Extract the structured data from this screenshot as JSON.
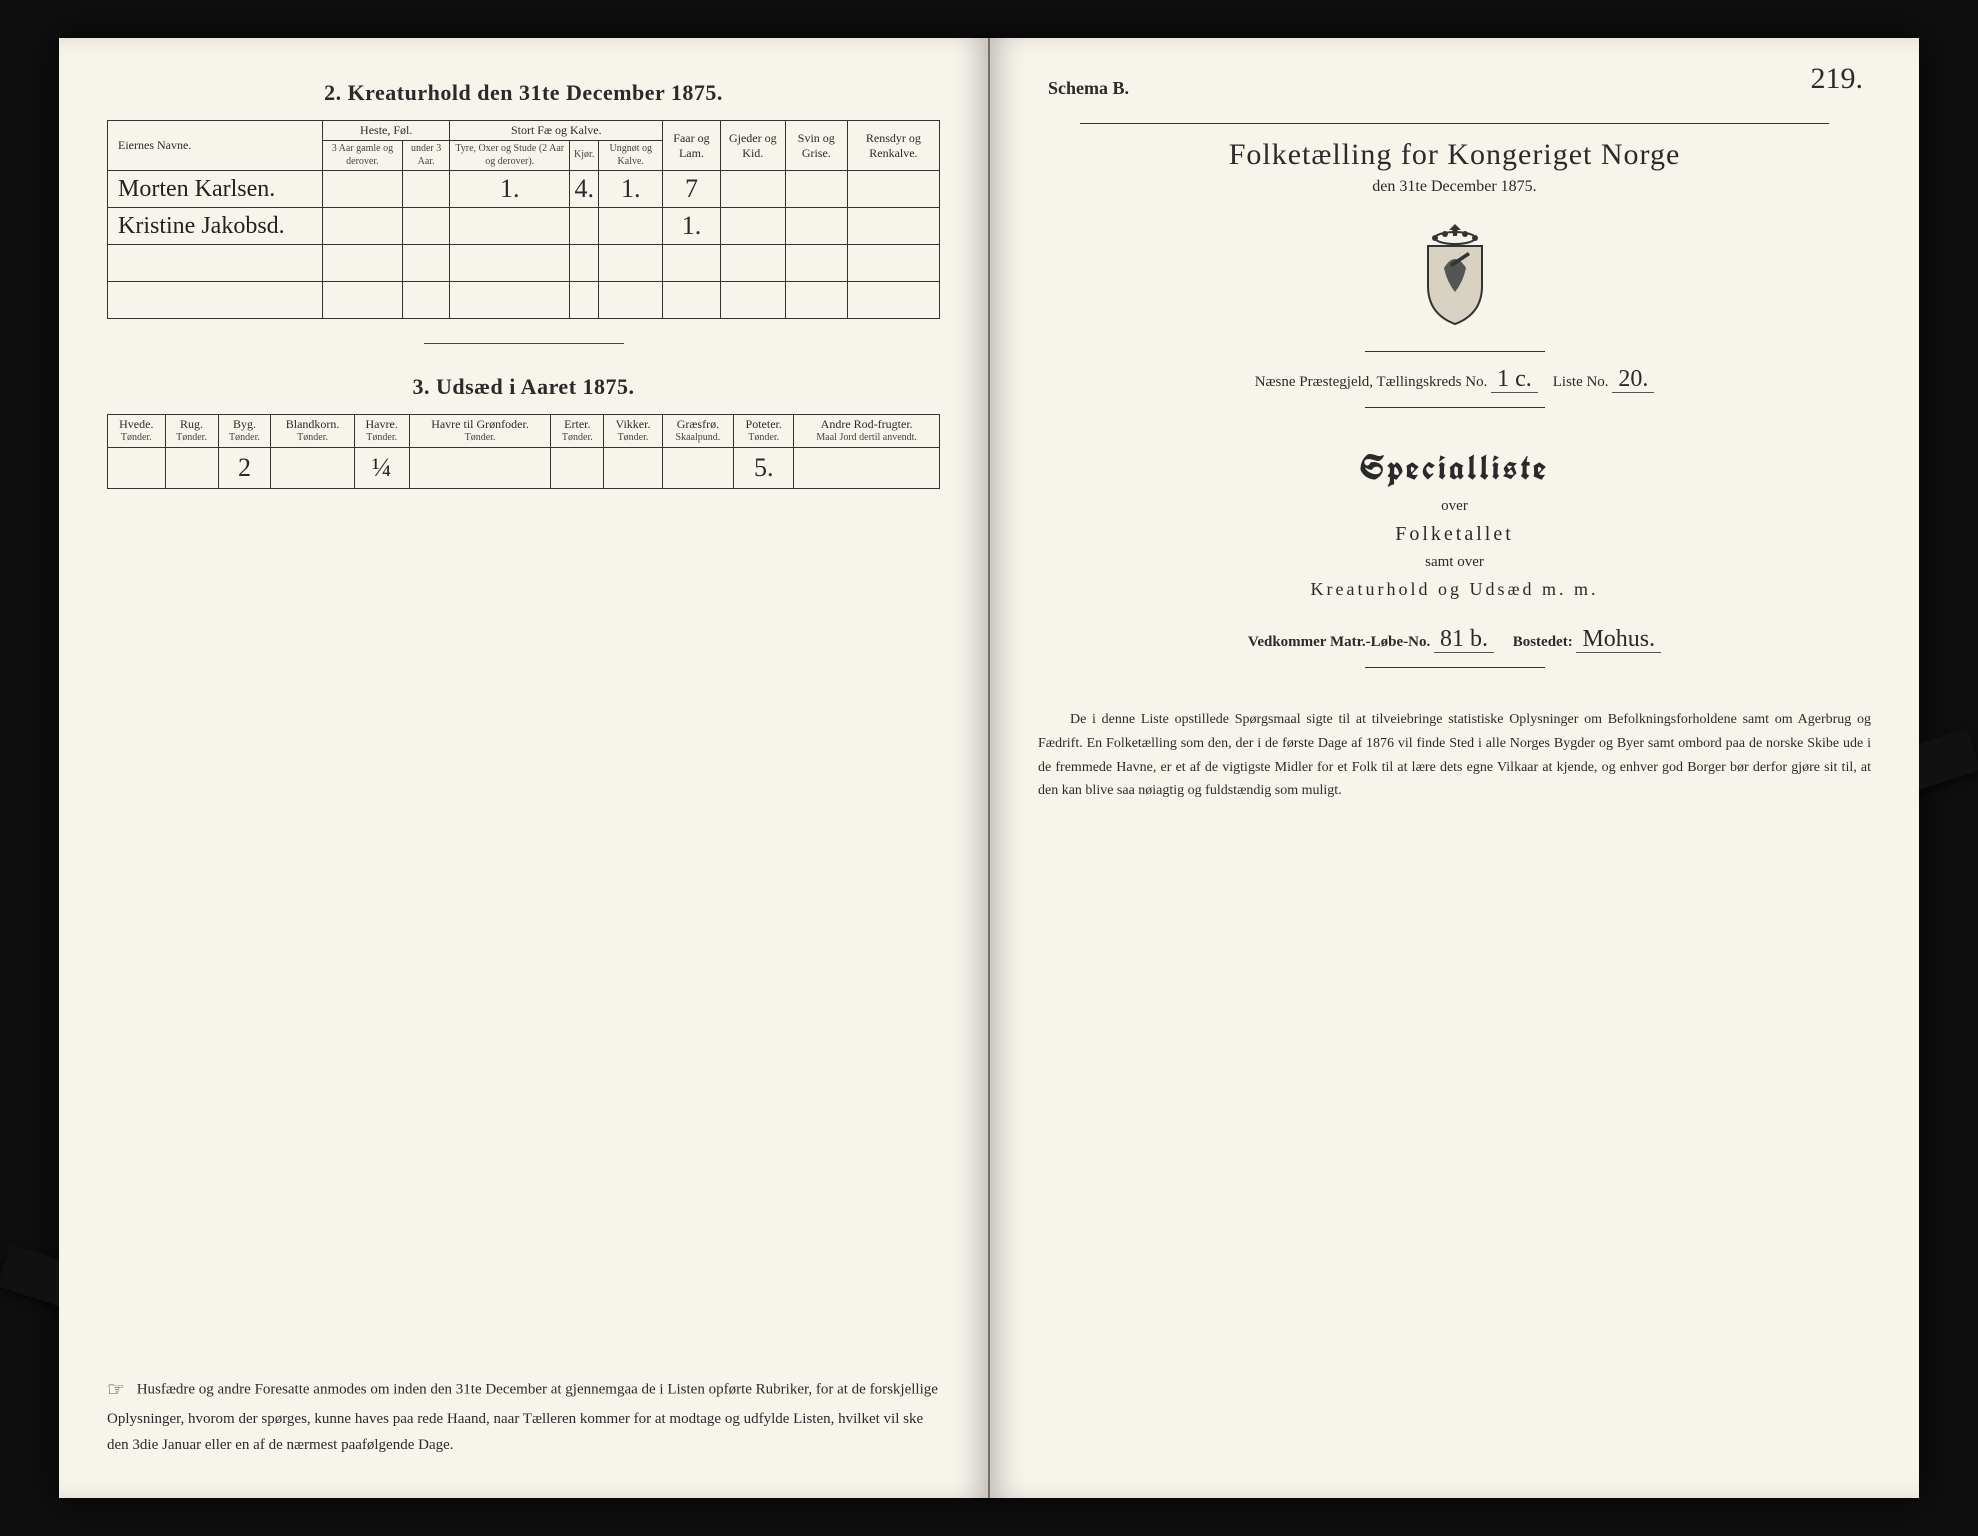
{
  "left": {
    "section2_title": "2.  Kreaturhold den 31te December 1875.",
    "table1": {
      "col_name": "Eiernes Navne.",
      "group_heste": "Heste, Føl.",
      "group_stortfae": "Stort Fæ og Kalve.",
      "col_faar": "Faar og Lam.",
      "col_gjeder": "Gjeder og Kid.",
      "col_svin": "Svin og Grise.",
      "col_rensdyr": "Rensdyr og Renkalve.",
      "heste_a": "3 Aar gamle og derover.",
      "heste_b": "under 3 Aar.",
      "stort_a": "Tyre, Oxer og Stude (2 Aar og derover).",
      "stort_b": "Kjør.",
      "stort_c": "Ungnøt og Kalve.",
      "rows": [
        {
          "name": "Morten Karlsen.",
          "heste_a": "",
          "heste_b": "",
          "stort_a": "1.",
          "stort_b": "4.",
          "stort_c": "1.",
          "faar": "7",
          "gjeder": "",
          "svin": "",
          "ren": ""
        },
        {
          "name": "Kristine Jakobsd.",
          "heste_a": "",
          "heste_b": "",
          "stort_a": "",
          "stort_b": "",
          "stort_c": "",
          "faar": "1.",
          "gjeder": "",
          "svin": "",
          "ren": ""
        },
        {
          "name": "",
          "heste_a": "",
          "heste_b": "",
          "stort_a": "",
          "stort_b": "",
          "stort_c": "",
          "faar": "",
          "gjeder": "",
          "svin": "",
          "ren": ""
        },
        {
          "name": "",
          "heste_a": "",
          "heste_b": "",
          "stort_a": "",
          "stort_b": "",
          "stort_c": "",
          "faar": "",
          "gjeder": "",
          "svin": "",
          "ren": ""
        }
      ]
    },
    "section3_title": "3.  Udsæd i Aaret 1875.",
    "table2": {
      "headers": [
        {
          "t": "Hvede.",
          "s": "Tønder."
        },
        {
          "t": "Rug.",
          "s": "Tønder."
        },
        {
          "t": "Byg.",
          "s": "Tønder."
        },
        {
          "t": "Blandkorn.",
          "s": "Tønder."
        },
        {
          "t": "Havre.",
          "s": "Tønder."
        },
        {
          "t": "Havre til Grønfoder.",
          "s": "Tønder."
        },
        {
          "t": "Erter.",
          "s": "Tønder."
        },
        {
          "t": "Vikker.",
          "s": "Tønder."
        },
        {
          "t": "Græsfrø.",
          "s": "Skaalpund."
        },
        {
          "t": "Poteter.",
          "s": "Tønder."
        },
        {
          "t": "Andre Rod-frugter.",
          "s": "Maal Jord dertil anvendt."
        }
      ],
      "row": [
        "",
        "",
        "2",
        "",
        "¼",
        "",
        "",
        "",
        "",
        "5.",
        ""
      ]
    },
    "notice": "Husfædre og andre Foresatte anmodes om inden den 31te December at gjennemgaa de i Listen opførte Rubriker, for at de forskjellige Oplysninger, hvorom der spørges, kunne haves paa rede Haand, naar Tælleren kommer for at modtage og udfylde Listen, hvilket vil ske den 3die Januar eller en af de nærmest paafølgende Dage."
  },
  "right": {
    "page_num": "219.",
    "schema": "Schema B.",
    "title": "Folketælling for Kongeriget Norge",
    "subtitle": "den 31te December 1875.",
    "line_parish_label_a": "Næsne Præstegjeld, Tællingskreds No.",
    "line_parish_fill_a": "1 c.",
    "line_parish_label_b": "Liste No.",
    "line_parish_fill_b": "20.",
    "special": "Specialliste",
    "over1": "over",
    "folketallet": "Folketallet",
    "samt": "samt over",
    "kreatur": "Kreaturhold og Udsæd m. m.",
    "vedk_label_a": "Vedkommer Matr.-Løbe-No.",
    "vedk_fill_a": "81 b.",
    "vedk_label_b": "Bostedet:",
    "vedk_fill_b": "Mohus.",
    "paragraph": "De i denne Liste opstillede Spørgsmaal sigte til at tilveiebringe statistiske Oplysninger om Befolkningsforholdene samt om Agerbrug og Fædrift.  En Folketælling som den, der i de første Dage af 1876 vil finde Sted i alle Norges Bygder og Byer samt ombord paa de norske Skibe ude i de fremmede Havne, er et af de vigtigste Midler for et Folk til at lære dets egne Vilkaar at kjende, og enhver god Borger bør derfor gjøre sit til, at den kan blive saa nøiagtig og fuldstændig som muligt."
  }
}
